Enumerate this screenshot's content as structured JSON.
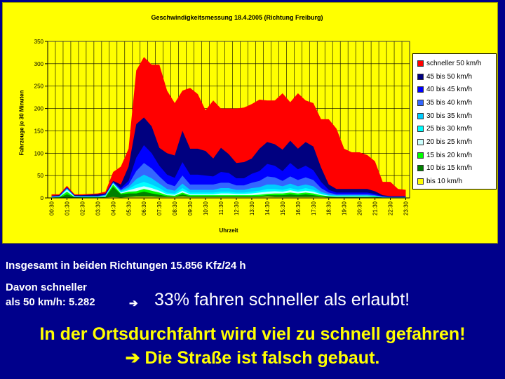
{
  "chart_data": {
    "type": "area",
    "title": "Geschwindigkeitsmessung 18.4.2005 (Richtung Freiburg)",
    "xlabel": "Uhrzeit",
    "ylabel": "Fahrzeuge je 30 Minuten",
    "ylim": [
      0,
      350
    ],
    "yticks": [
      0,
      50,
      100,
      150,
      200,
      250,
      300,
      350
    ],
    "grid": true,
    "legend_position": "right",
    "categories": [
      "00:30",
      "01:00",
      "01:30",
      "02:00",
      "02:30",
      "03:00",
      "03:30",
      "04:00",
      "04:30",
      "05:00",
      "05:30",
      "06:00",
      "06:30",
      "07:00",
      "07:30",
      "08:00",
      "08:30",
      "09:00",
      "09:30",
      "10:00",
      "10:30",
      "11:00",
      "11:30",
      "12:00",
      "12:30",
      "13:00",
      "13:30",
      "14:00",
      "14:30",
      "15:00",
      "15:30",
      "16:00",
      "16:30",
      "17:00",
      "17:30",
      "18:00",
      "18:30",
      "19:00",
      "19:30",
      "20:00",
      "20:30",
      "21:00",
      "21:30",
      "22:00",
      "22:30",
      "23:00",
      "23:30"
    ],
    "xtick_labels": [
      "00:30",
      "01:30",
      "02:30",
      "03:30",
      "04:30",
      "05:30",
      "06:30",
      "07:30",
      "08:30",
      "09:30",
      "10:30",
      "11:30",
      "12:30",
      "13:30",
      "14:30",
      "15:30",
      "16:30",
      "17:30",
      "18:30",
      "19:30",
      "20:30",
      "21:30",
      "22:30",
      "23:30"
    ],
    "stack_order_bottom_to_top": [
      "bis 10 km/h",
      "10 bis 15 km/h",
      "15 bis 20 km/h",
      "20 bis 25 km/h",
      "25 bis 30 km/h",
      "30 bis 35 km/h",
      "35 bis 40 km/h",
      "40 bis 45 km/h",
      "45 bis 50 km/h",
      "schneller 50 km/h"
    ],
    "cumulative_top": {
      "bis 10 km/h": [
        0,
        0,
        1,
        0,
        0,
        0,
        0,
        1,
        2,
        1,
        2,
        3,
        3,
        3,
        2,
        2,
        2,
        3,
        2,
        2,
        2,
        2,
        2,
        2,
        2,
        2,
        2,
        2,
        3,
        2,
        2,
        2,
        2,
        2,
        2,
        2,
        1,
        1,
        1,
        1,
        1,
        1,
        1,
        0,
        0,
        0,
        0
      ],
      "10 bis 15 km/h": [
        1,
        1,
        8,
        2,
        1,
        1,
        1,
        2,
        25,
        8,
        10,
        10,
        14,
        10,
        7,
        4,
        3,
        8,
        4,
        4,
        4,
        4,
        4,
        4,
        4,
        4,
        4,
        4,
        6,
        6,
        6,
        8,
        6,
        8,
        6,
        4,
        3,
        2,
        2,
        2,
        2,
        2,
        2,
        1,
        1,
        1,
        1
      ],
      "15 bis 20 km/h": [
        1,
        2,
        14,
        2,
        2,
        2,
        2,
        3,
        30,
        10,
        14,
        15,
        20,
        16,
        12,
        6,
        5,
        12,
        6,
        6,
        6,
        6,
        6,
        6,
        6,
        6,
        6,
        7,
        9,
        10,
        10,
        12,
        10,
        12,
        10,
        6,
        4,
        3,
        3,
        3,
        3,
        3,
        3,
        1,
        1,
        1,
        1
      ],
      "20 bis 25 km/h": [
        2,
        2,
        18,
        3,
        2,
        2,
        2,
        4,
        32,
        12,
        17,
        22,
        26,
        22,
        16,
        8,
        7,
        16,
        8,
        8,
        8,
        8,
        10,
        10,
        9,
        9,
        10,
        12,
        14,
        15,
        14,
        17,
        14,
        16,
        14,
        8,
        5,
        4,
        4,
        4,
        4,
        4,
        3,
        1,
        1,
        1,
        1
      ],
      "25 bis 30 km/h": [
        2,
        3,
        20,
        3,
        3,
        3,
        3,
        5,
        33,
        14,
        20,
        30,
        36,
        30,
        22,
        12,
        10,
        22,
        12,
        12,
        12,
        12,
        14,
        14,
        12,
        12,
        14,
        16,
        20,
        20,
        18,
        22,
        18,
        22,
        18,
        10,
        6,
        5,
        5,
        5,
        5,
        5,
        4,
        2,
        1,
        1,
        1
      ],
      "30 bis 35 km/h": [
        3,
        3,
        21,
        4,
        3,
        3,
        3,
        6,
        34,
        16,
        24,
        42,
        52,
        44,
        32,
        20,
        16,
        32,
        18,
        18,
        18,
        18,
        22,
        22,
        18,
        18,
        22,
        24,
        30,
        30,
        26,
        32,
        26,
        30,
        26,
        14,
        8,
        6,
        6,
        6,
        6,
        6,
        5,
        2,
        1,
        1,
        1
      ],
      "35 bis 40 km/h": [
        3,
        4,
        22,
        4,
        4,
        4,
        4,
        7,
        35,
        18,
        30,
        60,
        78,
        66,
        48,
        32,
        26,
        50,
        30,
        30,
        30,
        30,
        34,
        34,
        28,
        28,
        34,
        38,
        48,
        46,
        38,
        48,
        40,
        46,
        40,
        22,
        12,
        8,
        8,
        8,
        8,
        8,
        6,
        3,
        2,
        2,
        2
      ],
      "40 bis 45 km/h": [
        4,
        5,
        23,
        5,
        5,
        5,
        5,
        8,
        36,
        22,
        38,
        90,
        118,
        100,
        72,
        52,
        45,
        80,
        52,
        52,
        50,
        48,
        58,
        56,
        44,
        44,
        54,
        60,
        76,
        72,
        60,
        78,
        64,
        72,
        62,
        36,
        18,
        12,
        12,
        12,
        12,
        12,
        9,
        4,
        3,
        3,
        3
      ],
      "45 bis 50 km/h": [
        5,
        6,
        24,
        6,
        6,
        7,
        8,
        10,
        38,
        30,
        70,
        165,
        180,
        160,
        112,
        100,
        95,
        150,
        110,
        110,
        105,
        88,
        112,
        98,
        78,
        80,
        88,
        110,
        125,
        120,
        108,
        128,
        110,
        125,
        115,
        68,
        30,
        20,
        20,
        20,
        20,
        20,
        15,
        6,
        4,
        4,
        4
      ],
      "schneller 50 km/h": [
        8,
        8,
        27,
        8,
        8,
        9,
        10,
        14,
        58,
        70,
        110,
        285,
        315,
        298,
        298,
        240,
        212,
        240,
        246,
        232,
        196,
        218,
        200,
        200,
        200,
        202,
        210,
        220,
        218,
        218,
        234,
        214,
        234,
        218,
        212,
        176,
        176,
        155,
        110,
        102,
        102,
        96,
        82,
        36,
        36,
        20,
        18
      ]
    },
    "series": [
      {
        "name": "schneller 50 km/h",
        "color": "#ff0000"
      },
      {
        "name": "45 bis 50 km/h",
        "color": "#000080"
      },
      {
        "name": "40 bis 45 km/h",
        "color": "#0000ff"
      },
      {
        "name": "35 bis 40 km/h",
        "color": "#3366ff"
      },
      {
        "name": "30 bis 35 km/h",
        "color": "#00ccff"
      },
      {
        "name": "25 bis 30 km/h",
        "color": "#00ffff"
      },
      {
        "name": "20 bis 25 km/h",
        "color": "#ccffff"
      },
      {
        "name": "15 bis 20 km/h",
        "color": "#00ff00"
      },
      {
        "name": "10 bis 15 km/h",
        "color": "#008000"
      },
      {
        "name": "bis 10 km/h",
        "color": "#ffff00"
      }
    ]
  },
  "summary": {
    "total_line": "Insgesamt in beiden Richtungen 15.856 Kfz/24 h",
    "faster_label_line1": "Davon schneller",
    "faster_label_line2": "als 50 km/h: 5.282",
    "arrow": "➔",
    "percent_statement": "33% fahren schneller als erlaubt!",
    "conclusion_line1": "In der Ortsdurchfahrt wird viel zu schnell gefahren!",
    "conclusion_line2": "➔ Die Straße ist falsch gebaut."
  }
}
